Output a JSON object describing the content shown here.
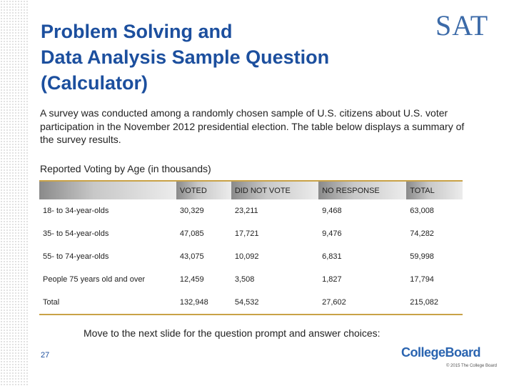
{
  "header": {
    "title_lines": [
      "Problem Solving and",
      "Data Analysis  Sample Question",
      "(Calculator)"
    ],
    "logo": "SAT"
  },
  "intro": "A survey was conducted among a randomly chosen sample of U.S. citizens about U.S. voter participation in the November 2012 presidential election. The table below displays a summary of the survey results.",
  "table": {
    "caption": "Reported Voting by Age (in thousands)",
    "columns": [
      "",
      "VOTED",
      "DID NOT VOTE",
      "NO RESPONSE",
      "TOTAL"
    ],
    "rows": [
      [
        "18- to 34-year-olds",
        "30,329",
        "23,211",
        "9,468",
        "63,008"
      ],
      [
        "35- to 54-year-olds",
        "47,085",
        "17,721",
        "9,476",
        "74,282"
      ],
      [
        "55- to 74-year-olds",
        "43,075",
        "10,092",
        "6,831",
        "59,998"
      ],
      [
        "People 75 years old and over",
        "12,459",
        "3,508",
        "1,827",
        "17,794"
      ],
      [
        "Total",
        "132,948",
        "54,532",
        "27,602",
        "215,082"
      ]
    ]
  },
  "footer": {
    "instruction": "Move to the next slide for the question prompt and answer choices:",
    "page_number": "27",
    "brand": "CollegeBoard",
    "copyright": "© 2015 The College Board"
  }
}
